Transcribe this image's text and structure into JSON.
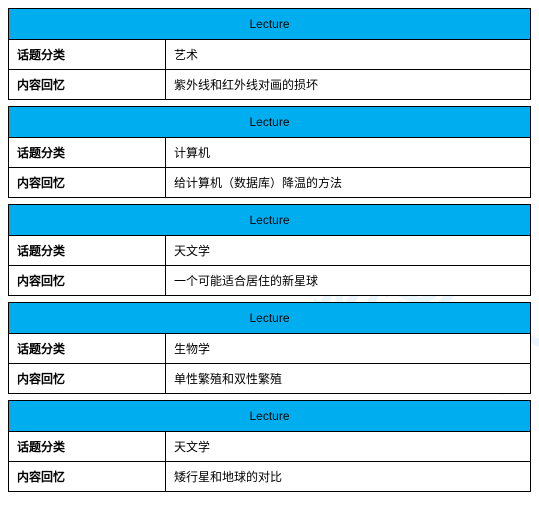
{
  "watermark": "朴新教育",
  "colors": {
    "header_bg": "#00aeef",
    "border": "#000000",
    "text": "#000000",
    "bg": "#ffffff",
    "watermark": "rgba(50,160,230,0.10)"
  },
  "labels": {
    "header": "Lecture",
    "topic": "话题分类",
    "recall": "内容回忆"
  },
  "sections": [
    {
      "topic": "艺术",
      "recall": "紫外线和红外线对画的损坏"
    },
    {
      "topic": "计算机",
      "recall": "给计算机（数据库）降温的方法"
    },
    {
      "topic": "天文学",
      "recall": "一个可能适合居住的新星球"
    },
    {
      "topic": "生物学",
      "recall": "单性繁殖和双性繁殖"
    },
    {
      "topic": "天文学",
      "recall": "矮行星和地球的对比"
    }
  ]
}
